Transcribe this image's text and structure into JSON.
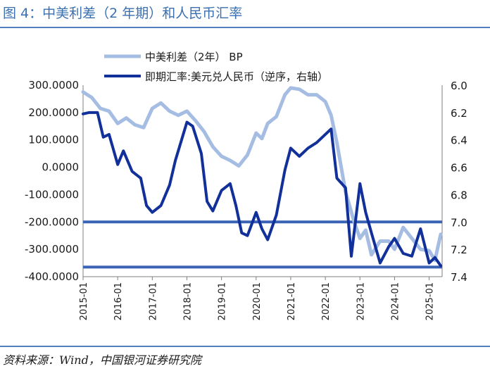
{
  "figure": {
    "title": "图 4：中美利差（2 年期）和人民币汇率",
    "source": "资料来源：Wind，中国银河证券研究院"
  },
  "chart_data": {
    "type": "line",
    "legend": [
      "中美利差（2年） BP",
      "即期汇率:美元兑人民币（逆序，右轴）"
    ],
    "legend_placement": "top-center",
    "x_tick_labels": [
      "2015-01",
      "2016-01",
      "2017-01",
      "2018-01",
      "2019-01",
      "2020-01",
      "2021-01",
      "2022-01",
      "2023-01",
      "2024-01",
      "2025-01"
    ],
    "left_axis": {
      "ylim": [
        -400,
        300
      ],
      "tick_labels": [
        "300.0000",
        "200.0000",
        "100.0000",
        "0.0000",
        "-100.0000",
        "-200.0000",
        "-300.0000",
        "-400.0000"
      ],
      "tick_values": [
        300,
        200,
        100,
        0,
        -100,
        -200,
        -300,
        -400
      ]
    },
    "right_axis": {
      "ylim": [
        6.0,
        7.4
      ],
      "inverted": true,
      "tick_labels": [
        "6.0",
        "6.2",
        "6.4",
        "6.6",
        "6.8",
        "7.0",
        "7.2",
        "7.4"
      ],
      "tick_values": [
        6.0,
        6.2,
        6.4,
        6.6,
        6.8,
        7.0,
        7.2,
        7.4
      ]
    },
    "reference_lines": [
      {
        "axis": "right",
        "value": 7.0,
        "color": "#3a63b5"
      },
      {
        "axis": "right",
        "value": 7.33,
        "color": "#3a63b5"
      }
    ],
    "series": [
      {
        "name": "中美利差（2年） BP",
        "axis": "left",
        "color": "#a6bde3",
        "x": [
          "2015-01",
          "2015-04",
          "2015-07",
          "2015-10",
          "2016-01",
          "2016-04",
          "2016-07",
          "2016-10",
          "2017-01",
          "2017-04",
          "2017-07",
          "2017-10",
          "2018-01",
          "2018-04",
          "2018-07",
          "2018-10",
          "2019-01",
          "2019-04",
          "2019-07",
          "2019-10",
          "2020-01",
          "2020-03",
          "2020-05",
          "2020-08",
          "2020-11",
          "2021-01",
          "2021-04",
          "2021-07",
          "2021-10",
          "2022-01",
          "2022-03",
          "2022-05",
          "2022-08",
          "2022-11",
          "2023-01",
          "2023-03",
          "2023-05",
          "2023-08",
          "2023-11",
          "2024-01",
          "2024-04",
          "2024-07",
          "2024-10",
          "2025-01",
          "2025-03",
          "2025-05"
        ],
        "y": [
          275,
          255,
          215,
          205,
          160,
          180,
          155,
          145,
          215,
          235,
          205,
          190,
          205,
          170,
          130,
          75,
          40,
          25,
          5,
          45,
          125,
          105,
          160,
          185,
          265,
          290,
          285,
          265,
          265,
          240,
          190,
          90,
          -90,
          -200,
          -260,
          -230,
          -320,
          -270,
          -270,
          -300,
          -220,
          -260,
          -300,
          -305,
          -340,
          -245
        ]
      },
      {
        "name": "即期汇率:美元兑人民币（逆序，右轴）",
        "axis": "right",
        "color": "#12309a",
        "x": [
          "2015-01",
          "2015-03",
          "2015-06",
          "2015-08",
          "2015-10",
          "2016-01",
          "2016-03",
          "2016-06",
          "2016-09",
          "2016-11",
          "2017-01",
          "2017-04",
          "2017-07",
          "2017-09",
          "2018-01",
          "2018-03",
          "2018-06",
          "2018-08",
          "2018-10",
          "2019-01",
          "2019-04",
          "2019-06",
          "2019-08",
          "2019-10",
          "2020-01",
          "2020-03",
          "2020-05",
          "2020-08",
          "2020-11",
          "2021-01",
          "2021-04",
          "2021-07",
          "2021-10",
          "2022-01",
          "2022-03",
          "2022-05",
          "2022-08",
          "2022-10",
          "2023-01",
          "2023-03",
          "2023-05",
          "2023-08",
          "2023-11",
          "2024-01",
          "2024-04",
          "2024-07",
          "2024-10",
          "2025-01",
          "2025-03",
          "2025-05"
        ],
        "y": [
          6.21,
          6.2,
          6.2,
          6.38,
          6.36,
          6.58,
          6.48,
          6.63,
          6.68,
          6.88,
          6.93,
          6.88,
          6.73,
          6.55,
          6.27,
          6.3,
          6.5,
          6.85,
          6.92,
          6.77,
          6.72,
          6.88,
          7.08,
          7.1,
          6.93,
          7.05,
          7.13,
          6.95,
          6.62,
          6.46,
          6.52,
          6.46,
          6.42,
          6.36,
          6.32,
          6.68,
          6.75,
          7.25,
          6.72,
          6.93,
          7.08,
          7.3,
          7.18,
          7.12,
          7.23,
          7.25,
          7.05,
          7.3,
          7.26,
          7.32
        ]
      }
    ]
  }
}
